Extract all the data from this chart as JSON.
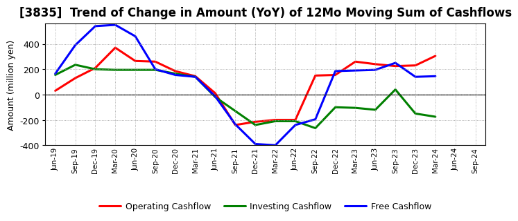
{
  "title": "[3835]  Trend of Change in Amount (YoY) of 12Mo Moving Sum of Cashflows",
  "ylabel": "Amount (million yen)",
  "ylim": [
    -400,
    560
  ],
  "yticks": [
    -400,
    -200,
    0,
    200,
    400
  ],
  "x_labels": [
    "Jun-19",
    "Sep-19",
    "Dec-19",
    "Mar-20",
    "Jun-20",
    "Sep-20",
    "Dec-20",
    "Mar-21",
    "Jun-21",
    "Sep-21",
    "Dec-21",
    "Mar-22",
    "Jun-22",
    "Sep-22",
    "Dec-22",
    "Mar-23",
    "Jun-23",
    "Sep-23",
    "Dec-23",
    "Mar-24",
    "Jun-24",
    "Sep-24"
  ],
  "operating": [
    30,
    130,
    210,
    370,
    265,
    260,
    185,
    145,
    10,
    -240,
    -215,
    -200,
    -200,
    150,
    155,
    260,
    240,
    225,
    230,
    305,
    null,
    null
  ],
  "investing": [
    155,
    235,
    200,
    195,
    195,
    195,
    165,
    140,
    -20,
    -130,
    -240,
    -210,
    -210,
    -265,
    -100,
    -105,
    -120,
    40,
    -150,
    -175,
    null,
    null
  ],
  "free": [
    165,
    390,
    540,
    550,
    460,
    200,
    155,
    140,
    -15,
    -235,
    -390,
    -400,
    -240,
    -195,
    185,
    190,
    195,
    250,
    140,
    145,
    null,
    null
  ],
  "operating_color": "#ff0000",
  "investing_color": "#008000",
  "free_color": "#0000ff",
  "bg_color": "#ffffff",
  "plot_bg_color": "#ffffff",
  "grid_color": "#999999",
  "line_width": 2.2,
  "title_fontsize": 12,
  "legend_labels": [
    "Operating Cashflow",
    "Investing Cashflow",
    "Free Cashflow"
  ]
}
